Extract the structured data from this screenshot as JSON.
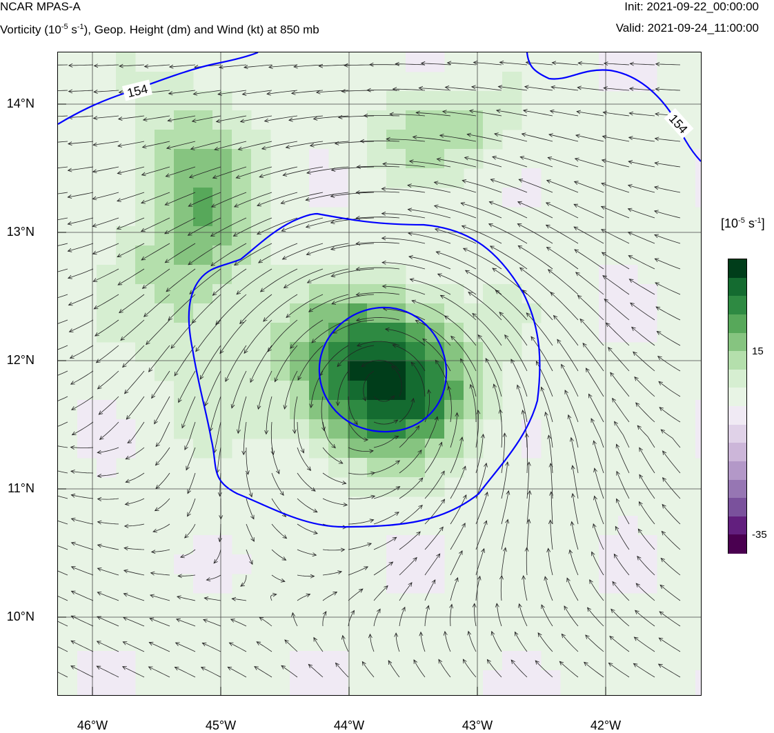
{
  "header": {
    "title": "NCAR MPAS-A",
    "subtitle_pre": "Vorticity (10",
    "subtitle_exp": "-5",
    "subtitle_mid": " s",
    "subtitle_exp2": "-1",
    "subtitle_post": "), Geop. Height (dm) and Wind (kt) at 850 mb",
    "init": "Init: 2021-09-22_00:00:00",
    "valid": "Valid: 2021-09-24_11:00:00"
  },
  "axes": {
    "lat_labels": [
      "14°N",
      "13°N",
      "12°N",
      "11°N",
      "10°N"
    ],
    "lon_labels": [
      "46°W",
      "45°W",
      "44°W",
      "43°W",
      "42°W"
    ]
  },
  "contours": {
    "label_upper_left": "154",
    "label_upper_right": "154",
    "color": "#0000ff"
  },
  "colorbar": {
    "units_pre": "[10",
    "units_exp": "-5",
    "units_mid": " s",
    "units_exp2": "-1",
    "units_post": "]",
    "tick_high": "15",
    "tick_low": "-35",
    "colors": [
      "#003d1a",
      "#146b30",
      "#2e8a42",
      "#57a85a",
      "#86c480",
      "#b4dfac",
      "#d6eed1",
      "#e8f4e5",
      "#f0eaf4",
      "#e0d2e8",
      "#ccb6d9",
      "#b398c8",
      "#9676b3",
      "#7a519c",
      "#621f7e",
      "#4a0050"
    ]
  },
  "style": {
    "grid_color": "#444444",
    "arrow_color": "#222222"
  }
}
